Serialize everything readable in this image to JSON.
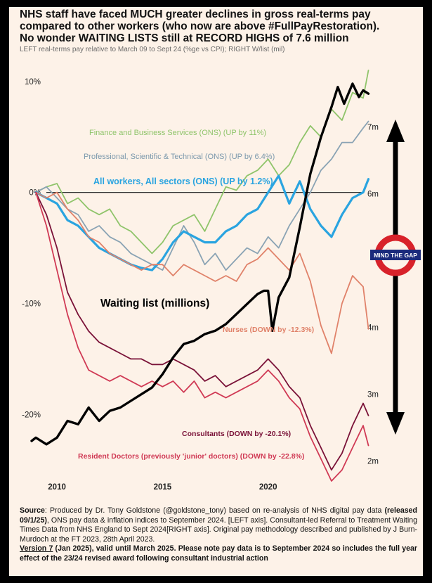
{
  "chart_data": {
    "type": "line",
    "title_lines": [
      "NHS staff have faced MUCH greater declines in gross real-terms pay",
      "compared to other workers (who now are above #FullPayRestoration).",
      "No wonder WAITING LISTS still at RECORD HIGHS of 7.6 million"
    ],
    "subtitle": "LEFT real-terms pay relative to March 09 to Sept 24 (%ge vs CPI); RIGHT W/list (mil)",
    "x_range": [
      2008.5,
      2024.9
    ],
    "x_ticks": [
      {
        "value": 2010,
        "label": "2010"
      },
      {
        "value": 2015,
        "label": "2015"
      },
      {
        "value": 2020,
        "label": "2020"
      }
    ],
    "left_axis": {
      "range": [
        -26,
        11
      ],
      "ticks": [
        {
          "value": 10,
          "label": "10%"
        },
        {
          "value": 0,
          "label": "0%"
        },
        {
          "value": -10,
          "label": "-10%"
        },
        {
          "value": -20,
          "label": "-20%"
        }
      ]
    },
    "right_axis": {
      "range": [
        1.7,
        7.85
      ],
      "ticks": [
        {
          "value": 7,
          "label": "7m"
        },
        {
          "value": 6,
          "label": "6m"
        },
        {
          "value": 4,
          "label": "4m"
        },
        {
          "value": 3,
          "label": "3m"
        },
        {
          "value": 2,
          "label": "2m"
        }
      ]
    },
    "series": [
      {
        "name": "Finance and Business Services (ONS) (UP by 11%)",
        "axis": "left",
        "color": "#8fc46a",
        "x": [
          2009,
          2009.5,
          2010,
          2010.5,
          2011,
          2011.5,
          2012,
          2012.5,
          2013,
          2013.5,
          2014,
          2014.5,
          2015,
          2015.5,
          2016,
          2016.5,
          2017,
          2017.5,
          2018,
          2018.5,
          2019,
          2019.5,
          2020,
          2020.5,
          2021,
          2021.5,
          2022,
          2022.5,
          2023,
          2023.5,
          2024,
          2024.5,
          2024.75
        ],
        "values": [
          0,
          0.5,
          0.8,
          -1,
          -0.5,
          -1.5,
          -2,
          -1.5,
          -3,
          -3.5,
          -4.5,
          -5.5,
          -4.5,
          -3,
          -2.5,
          -2,
          -3.5,
          -1.5,
          0.5,
          0.2,
          1.5,
          2,
          3,
          1.5,
          2.5,
          4.5,
          6,
          5,
          7.5,
          6.5,
          9,
          8.5,
          11
        ]
      },
      {
        "name": "Professional, Scientific & Technical (ONS) (UP by 6.4%)",
        "axis": "left",
        "color": "#8aa3b4",
        "x": [
          2009,
          2009.5,
          2010,
          2010.5,
          2011,
          2011.5,
          2012,
          2012.5,
          2013,
          2013.5,
          2014,
          2014.5,
          2015,
          2015.5,
          2016,
          2016.5,
          2017,
          2017.5,
          2018,
          2018.5,
          2019,
          2019.5,
          2020,
          2020.5,
          2021,
          2021.5,
          2022,
          2022.5,
          2023,
          2023.5,
          2024,
          2024.5,
          2024.75
        ],
        "values": [
          0,
          0.5,
          -0.5,
          -1.5,
          -2,
          -3.5,
          -3,
          -4,
          -4.5,
          -5.5,
          -6,
          -6.5,
          -7,
          -5,
          -3,
          -4.5,
          -6.5,
          -5.5,
          -7,
          -6,
          -5,
          -5.5,
          -4,
          -5,
          -3,
          -1.5,
          0,
          2,
          3,
          4.5,
          4.5,
          5.8,
          6.4
        ]
      },
      {
        "name": "All workers, All sectors (ONS) (UP by 1.2%)",
        "axis": "left",
        "color": "#2aa4e0",
        "x": [
          2009,
          2009.5,
          2010,
          2010.5,
          2011,
          2011.5,
          2012,
          2012.5,
          2013,
          2013.5,
          2014,
          2014.5,
          2015,
          2015.5,
          2016,
          2016.5,
          2017,
          2017.5,
          2018,
          2018.5,
          2019,
          2019.5,
          2020,
          2020.5,
          2021,
          2021.5,
          2022,
          2022.5,
          2023,
          2023.5,
          2024,
          2024.5,
          2024.75
        ],
        "values": [
          0,
          -0.5,
          -1,
          -2.5,
          -3,
          -4,
          -5,
          -5.5,
          -6,
          -6.5,
          -6.8,
          -7,
          -6,
          -4.5,
          -3.5,
          -4,
          -4.5,
          -4.5,
          -3.5,
          -3,
          -2,
          -1.5,
          0,
          1.5,
          -1,
          1,
          -1.5,
          -3,
          -4,
          -2,
          -0.5,
          0,
          1.2
        ]
      },
      {
        "name": "Nurses (DOWN by -12.3%)",
        "axis": "left",
        "color": "#e0826a",
        "x": [
          2009,
          2009.5,
          2010,
          2010.5,
          2011,
          2011.5,
          2012,
          2012.5,
          2013,
          2013.5,
          2014,
          2014.5,
          2015,
          2015.5,
          2016,
          2016.5,
          2017,
          2017.5,
          2018,
          2018.5,
          2019,
          2019.5,
          2020,
          2020.5,
          2021,
          2021.5,
          2022,
          2022.5,
          2023,
          2023.5,
          2024,
          2024.5,
          2024.75
        ],
        "values": [
          0,
          -0.5,
          0,
          -1.5,
          -2.5,
          -4,
          -4.5,
          -5.5,
          -6,
          -6.5,
          -7,
          -6.5,
          -6.5,
          -7.5,
          -6.5,
          -7,
          -7.5,
          -8,
          -7.5,
          -8,
          -6.5,
          -6,
          -5,
          -6,
          -7,
          -5.5,
          -8,
          -12,
          -14.5,
          -10,
          -7.5,
          -8.5,
          -12.3
        ]
      },
      {
        "name": "Consultants (DOWN by -20.1%)",
        "axis": "left",
        "color": "#7a1238",
        "x": [
          2009,
          2009.5,
          2010,
          2010.5,
          2011,
          2011.5,
          2012,
          2012.5,
          2013,
          2013.5,
          2014,
          2014.5,
          2015,
          2015.5,
          2016,
          2016.5,
          2017,
          2017.5,
          2018,
          2018.5,
          2019,
          2019.5,
          2020,
          2020.5,
          2021,
          2021.5,
          2022,
          2022.5,
          2023,
          2023.5,
          2024,
          2024.5,
          2024.75
        ],
        "values": [
          0,
          -2,
          -5,
          -9,
          -11,
          -12.5,
          -13.5,
          -14,
          -14.5,
          -15,
          -15,
          -15.5,
          -15.5,
          -15,
          -15.5,
          -16,
          -17,
          -16.5,
          -17.5,
          -17,
          -16.5,
          -16,
          -15,
          -16,
          -17.5,
          -18.5,
          -21,
          -23,
          -25,
          -23.5,
          -21,
          -19,
          -20.1
        ]
      },
      {
        "name": "Resident Doctors (previously 'junior' doctors) (DOWN by -22.8%)",
        "axis": "left",
        "color": "#d03a55",
        "x": [
          2009,
          2009.5,
          2010,
          2010.5,
          2011,
          2011.5,
          2012,
          2012.5,
          2013,
          2013.5,
          2014,
          2014.5,
          2015,
          2015.5,
          2016,
          2016.5,
          2017,
          2017.5,
          2018,
          2018.5,
          2019,
          2019.5,
          2020,
          2020.5,
          2021,
          2021.5,
          2022,
          2022.5,
          2023,
          2023.5,
          2024,
          2024.5,
          2024.75
        ],
        "values": [
          0,
          -3,
          -7,
          -11,
          -14,
          -16,
          -16.5,
          -17,
          -16.5,
          -17,
          -17.5,
          -17,
          -17.5,
          -17,
          -18,
          -17,
          -18.5,
          -18,
          -18.5,
          -18,
          -17.5,
          -17,
          -16,
          -17,
          -18.5,
          -19.5,
          -22,
          -24,
          -26,
          -25,
          -23,
          -21,
          -22.8
        ]
      },
      {
        "name": "Waiting list (millions)",
        "axis": "right",
        "color": "#000000",
        "x": [
          2008.8,
          2009,
          2009.5,
          2010,
          2010.5,
          2011,
          2011.5,
          2012,
          2012.5,
          2013,
          2013.5,
          2014,
          2014.5,
          2015,
          2015.5,
          2016,
          2016.5,
          2017,
          2017.5,
          2018,
          2018.5,
          2019,
          2019.5,
          2019.8,
          2020,
          2020.2,
          2020.5,
          2021,
          2021.5,
          2022,
          2022.5,
          2023,
          2023.3,
          2023.6,
          2024,
          2024.3,
          2024.5,
          2024.75
        ],
        "values": [
          2.3,
          2.35,
          2.25,
          2.35,
          2.6,
          2.55,
          2.8,
          2.6,
          2.75,
          2.8,
          2.9,
          3.0,
          3.1,
          3.3,
          3.55,
          3.75,
          3.8,
          3.9,
          3.95,
          4.05,
          4.2,
          4.35,
          4.5,
          4.55,
          4.55,
          3.95,
          4.45,
          4.75,
          5.5,
          6.3,
          6.85,
          7.3,
          7.6,
          7.35,
          7.65,
          7.45,
          7.55,
          7.5
        ]
      }
    ],
    "series_labels": [
      {
        "text": "Finance and Business Services (ONS) (UP by 11%)"
      },
      {
        "text": "Professional, Scientific & Technical (ONS) (UP by 6.4%)"
      },
      {
        "text": "All workers, All sectors (ONS) (UP by 1.2%)"
      },
      {
        "text": "Waiting list (millions)"
      },
      {
        "text": "Nurses (DOWN by -12.3%)"
      },
      {
        "text": "Consultants (DOWN by -20.1%)"
      },
      {
        "text": "Resident Doctors (previously 'junior' doctors) (DOWN by -22.8%)"
      }
    ],
    "badge": {
      "text": "MIND THE GAP",
      "ring_color": "#d8222a",
      "bar_color": "#1a2a7c"
    },
    "gap_arrow": {
      "description": "double-headed arrow",
      "color": "#000000"
    }
  },
  "source": {
    "label": "Source",
    "text1": ": Produced by Dr. Tony Goldstone (@goldstone_tony) based on re-analysis of NHS digital pay data ",
    "release": "(released 09/1/25)",
    "text2": ", ONS pay data & inflation indices to September 2024. [LEFT axis]. Consultant-led Referral to Treatment Waiting Times Data from NHS England to Sept 2024[RIGHT axis]. Original pay methodology described and published by J Burn-Murdoch at the FT 2023, 28th April 2023.",
    "version_label": "Version 7",
    "version_text": " (Jan 2025), valid until March 2025. Please note pay data is to September 2024 so includes the full year effect of the 23/24 revised award following consultant industrial action"
  }
}
